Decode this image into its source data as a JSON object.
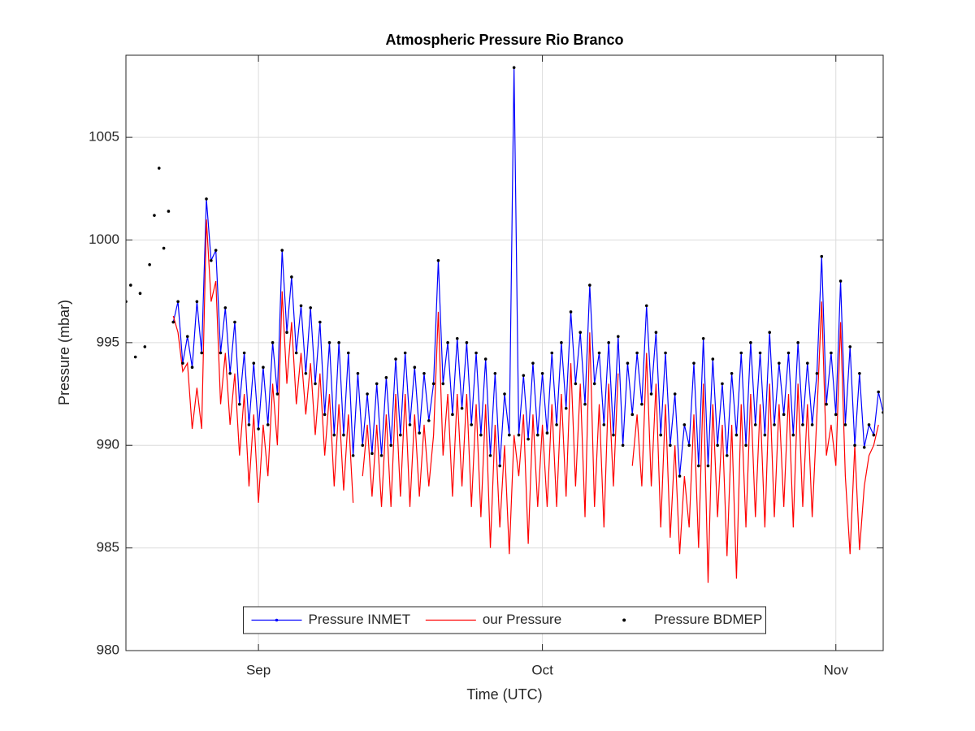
{
  "chart_data": {
    "type": "line",
    "title": "Atmospheric Pressure Rio Branco",
    "xlabel": "Time (UTC)",
    "ylabel": "Pressure (mbar)",
    "xlim": [
      230,
      310
    ],
    "xticks": [
      {
        "value": 244,
        "label": "Sep"
      },
      {
        "value": 274,
        "label": "Oct"
      },
      {
        "value": 305,
        "label": "Nov"
      }
    ],
    "ylim": [
      980,
      1009
    ],
    "yticks": [
      980,
      985,
      990,
      995,
      1000,
      1005
    ],
    "grid": true,
    "legend": "bottom",
    "x": [
      230,
      230.5,
      231,
      231.5,
      232,
      232.5,
      233,
      233.5,
      234,
      234.5,
      235,
      235.5,
      236,
      236.5,
      237,
      237.5,
      238,
      238.5,
      239,
      239.5,
      240,
      240.5,
      241,
      241.5,
      242,
      242.5,
      243,
      243.5,
      244,
      244.5,
      245,
      245.5,
      246,
      246.5,
      247,
      247.5,
      248,
      248.5,
      249,
      249.5,
      250,
      250.5,
      251,
      251.5,
      252,
      252.5,
      253,
      253.5,
      254,
      254.5,
      255,
      255.5,
      256,
      256.5,
      257,
      257.5,
      258,
      258.5,
      259,
      259.5,
      260,
      260.5,
      261,
      261.5,
      262,
      262.5,
      263,
      263.5,
      264,
      264.5,
      265,
      265.5,
      266,
      266.5,
      267,
      267.5,
      268,
      268.5,
      269,
      269.5,
      270,
      270.5,
      271,
      271.5,
      272,
      272.5,
      273,
      273.5,
      274,
      274.5,
      275,
      275.5,
      276,
      276.5,
      277,
      277.5,
      278,
      278.5,
      279,
      279.5,
      280,
      280.5,
      281,
      281.5,
      282,
      282.5,
      283,
      283.5,
      284,
      284.5,
      285,
      285.5,
      286,
      286.5,
      287,
      287.5,
      288,
      288.5,
      289,
      289.5,
      290,
      290.5,
      291,
      291.5,
      292,
      292.5,
      293,
      293.5,
      294,
      294.5,
      295,
      295.5,
      296,
      296.5,
      297,
      297.5,
      298,
      298.5,
      299,
      299.5,
      300,
      300.5,
      301,
      301.5,
      302,
      302.5,
      303,
      303.5,
      304,
      304.5,
      305,
      305.5,
      306,
      306.5,
      307,
      307.5,
      308,
      308.5,
      309,
      309.5,
      310
    ],
    "series": [
      {
        "name": "Pressure INMET",
        "color": "#0000ff",
        "style": "line-marker",
        "values": [
          null,
          null,
          null,
          null,
          null,
          null,
          null,
          null,
          null,
          null,
          996.0,
          997.0,
          994.0,
          995.3,
          993.8,
          997.0,
          994.5,
          1002.0,
          999.0,
          999.5,
          994.5,
          996.7,
          993.5,
          996.0,
          992.0,
          994.5,
          991.0,
          994.0,
          990.8,
          993.8,
          991.0,
          995.0,
          992.5,
          999.5,
          995.5,
          998.2,
          994.5,
          996.8,
          993.5,
          996.7,
          993.0,
          996.0,
          991.5,
          995.0,
          990.5,
          995.0,
          990.5,
          994.5,
          989.5,
          993.5,
          990.0,
          992.5,
          989.6,
          993.0,
          989.5,
          993.3,
          990.0,
          994.2,
          990.5,
          994.5,
          991.0,
          993.8,
          990.6,
          993.5,
          991.2,
          993.0,
          999.0,
          993.0,
          995.0,
          991.5,
          995.2,
          991.8,
          995.0,
          991.0,
          994.5,
          990.5,
          994.2,
          989.5,
          993.5,
          989.0,
          992.5,
          990.5,
          1008.4,
          990.5,
          993.4,
          990.3,
          994.0,
          990.5,
          993.5,
          990.6,
          994.5,
          991.0,
          995.0,
          991.8,
          996.5,
          993.0,
          995.5,
          992.0,
          997.8,
          993.0,
          994.5,
          991.0,
          995.0,
          990.5,
          995.3,
          990.0,
          994.0,
          991.5,
          994.5,
          992.0,
          996.8,
          992.5,
          995.5,
          990.5,
          994.5,
          990.0,
          992.5,
          988.5,
          991.0,
          990.0,
          994.0,
          989.0,
          995.2,
          989.0,
          994.2,
          990.0,
          993.0,
          989.5,
          993.5,
          990.5,
          994.5,
          990.0,
          995.0,
          991.0,
          994.5,
          990.5,
          995.5,
          991.0,
          994.0,
          991.5,
          994.5,
          990.5,
          995.0,
          991.0,
          994.0,
          991.0,
          993.5,
          999.2,
          992.0,
          994.5,
          991.5,
          998.0,
          991.0,
          994.8,
          990.0,
          993.5,
          989.9,
          991.0,
          990.5,
          992.6,
          991.6
        ]
      },
      {
        "name": "our Pressure",
        "color": "#ff0000",
        "style": "line",
        "values": [
          null,
          null,
          null,
          null,
          null,
          null,
          null,
          null,
          null,
          null,
          996.3,
          995.5,
          993.6,
          994.0,
          990.8,
          992.8,
          990.8,
          1001.0,
          997.0,
          998.0,
          992.0,
          994.5,
          991.0,
          993.5,
          989.5,
          992.5,
          988.0,
          991.5,
          987.2,
          991.0,
          988.5,
          993.0,
          990.0,
          997.5,
          993.0,
          996.0,
          992.0,
          994.5,
          991.5,
          994.0,
          990.5,
          993.5,
          989.5,
          992.5,
          988.0,
          992.0,
          987.8,
          991.5,
          987.2,
          null,
          988.5,
          991.0,
          987.5,
          991.0,
          987.0,
          991.5,
          987.0,
          992.5,
          987.5,
          992.5,
          987.0,
          991.5,
          987.5,
          991.0,
          988.0,
          990.5,
          996.5,
          989.5,
          992.5,
          987.5,
          992.5,
          988.0,
          992.5,
          987.0,
          992.0,
          986.5,
          992.0,
          985.0,
          991.0,
          986.0,
          990.0,
          984.7,
          990.5,
          988.5,
          991.5,
          985.2,
          991.5,
          987.0,
          991.0,
          987.0,
          992.0,
          987.0,
          992.5,
          987.5,
          994.0,
          988.0,
          993.0,
          986.5,
          995.5,
          987.0,
          992.0,
          986.0,
          993.0,
          988.0,
          993.5,
          null,
          null,
          989.0,
          991.5,
          988.0,
          994.5,
          988.0,
          993.0,
          986.0,
          992.0,
          985.5,
          990.0,
          984.7,
          988.5,
          986.0,
          991.5,
          985.0,
          993.0,
          983.3,
          992.0,
          986.5,
          991.0,
          984.6,
          991.0,
          983.5,
          992.0,
          986.0,
          992.5,
          986.5,
          992.0,
          986.0,
          993.0,
          986.5,
          992.0,
          987.0,
          992.5,
          986.0,
          993.0,
          987.0,
          992.0,
          986.5,
          991.5,
          997.0,
          989.5,
          991.0,
          989.0,
          996.0,
          988.5,
          984.7,
          990.0,
          984.9,
          988.0,
          989.5,
          990.0,
          991.0,
          null
        ]
      },
      {
        "name": "Pressure BDMEP",
        "color": "#000000",
        "style": "dots",
        "values": [
          997.0,
          997.8,
          994.3,
          997.4,
          994.8,
          998.8,
          1001.2,
          1003.5,
          999.6,
          1001.4,
          996.0,
          997.0,
          994.0,
          995.3,
          993.8,
          997.0,
          994.5,
          1002.0,
          999.0,
          999.5,
          994.5,
          996.7,
          993.5,
          996.0,
          992.0,
          994.5,
          991.0,
          994.0,
          990.8,
          993.8,
          991.0,
          995.0,
          992.5,
          999.5,
          995.5,
          998.2,
          994.5,
          996.8,
          993.5,
          996.7,
          993.0,
          996.0,
          991.5,
          995.0,
          990.5,
          995.0,
          990.5,
          994.5,
          989.5,
          993.5,
          990.0,
          992.5,
          989.6,
          993.0,
          989.5,
          993.3,
          990.0,
          994.2,
          990.5,
          994.5,
          991.0,
          993.8,
          990.6,
          993.5,
          991.2,
          993.0,
          999.0,
          993.0,
          995.0,
          991.5,
          995.2,
          991.8,
          995.0,
          991.0,
          994.5,
          990.5,
          994.2,
          989.5,
          993.5,
          989.0,
          992.5,
          990.5,
          1008.4,
          990.5,
          993.4,
          990.3,
          994.0,
          990.5,
          993.5,
          990.6,
          994.5,
          991.0,
          995.0,
          991.8,
          996.5,
          993.0,
          995.5,
          992.0,
          997.8,
          993.0,
          994.5,
          991.0,
          995.0,
          990.5,
          995.3,
          990.0,
          994.0,
          991.5,
          994.5,
          992.0,
          996.8,
          992.5,
          995.5,
          990.5,
          994.5,
          990.0,
          992.5,
          988.5,
          991.0,
          990.0,
          994.0,
          989.0,
          995.2,
          989.0,
          994.2,
          990.0,
          993.0,
          989.5,
          993.5,
          990.5,
          994.5,
          990.0,
          995.0,
          991.0,
          994.5,
          990.5,
          995.5,
          991.0,
          994.0,
          991.5,
          994.5,
          990.5,
          995.0,
          991.0,
          994.0,
          991.0,
          993.5,
          999.2,
          992.0,
          994.5,
          991.5,
          998.0,
          991.0,
          994.8,
          990.0,
          993.5,
          989.9,
          991.0,
          990.5,
          992.6,
          991.6
        ]
      }
    ]
  }
}
